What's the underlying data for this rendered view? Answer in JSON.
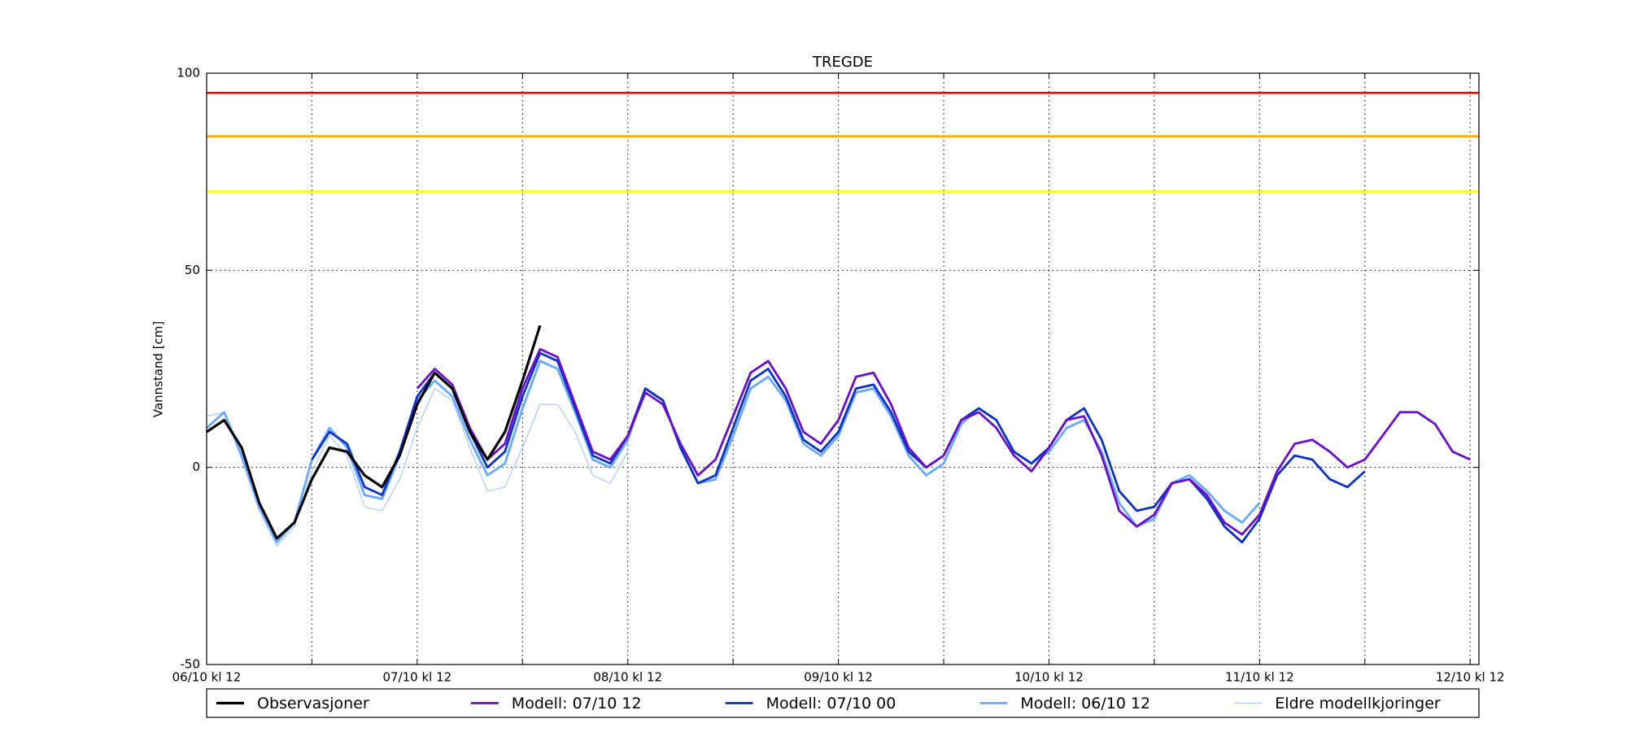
{
  "chart_data": {
    "type": "line",
    "title": "TREGDE",
    "ylabel": "Vannstand [cm]",
    "x": [
      0,
      2,
      4,
      6,
      8,
      10,
      12,
      14,
      16,
      18,
      20,
      22,
      24,
      26,
      28,
      30,
      32,
      34,
      36,
      38,
      40,
      42,
      44,
      46,
      48,
      50,
      52,
      54,
      56,
      58,
      60,
      62,
      64,
      66,
      68,
      70,
      72,
      74,
      76,
      78,
      80,
      82,
      84,
      86,
      88,
      90,
      92,
      94,
      96,
      98,
      100,
      102,
      104,
      106,
      108,
      110,
      112,
      114,
      116,
      118,
      120,
      122,
      124,
      126,
      128,
      130,
      132,
      134,
      136,
      138,
      140,
      142,
      144
    ],
    "xlim": [
      0,
      145
    ],
    "xticks": [
      {
        "value": 0,
        "label": "06/10 kl 12"
      },
      {
        "value": 24,
        "label": "07/10 kl 12"
      },
      {
        "value": 48,
        "label": "08/10 kl 12"
      },
      {
        "value": 72,
        "label": "09/10 kl 12"
      },
      {
        "value": 96,
        "label": "10/10 kl 12"
      },
      {
        "value": 120,
        "label": "11/10 kl 12"
      },
      {
        "value": 144,
        "label": "12/10 kl 12"
      }
    ],
    "xminorticks": [
      12,
      36,
      60,
      84,
      108,
      132
    ],
    "ylim": [
      -50,
      100
    ],
    "yticks": [
      -50,
      0,
      50,
      100
    ],
    "grid": true,
    "hlines": [
      {
        "value": 95,
        "color": "#ff0000"
      },
      {
        "value": 84,
        "color": "#ffa500"
      },
      {
        "value": 70,
        "color": "#ffff00"
      }
    ],
    "legend": "bottom",
    "series": [
      {
        "name": "Observasjoner",
        "color": "#000000",
        "linewidth": 3.2,
        "values": [
          9,
          12,
          5,
          -9,
          -18,
          -14,
          -3,
          5,
          4,
          -2,
          -5,
          3,
          16,
          24,
          20,
          9,
          2,
          9,
          22,
          36,
          null,
          null,
          null,
          null,
          null,
          null,
          null,
          null,
          null,
          null,
          null,
          null,
          null,
          null,
          null,
          null,
          null,
          null,
          null,
          null,
          null,
          null,
          null,
          null,
          null,
          null,
          null,
          null,
          null,
          null,
          null,
          null,
          null,
          null,
          null,
          null,
          null,
          null,
          null,
          null,
          null,
          null,
          null,
          null,
          null,
          null,
          null,
          null,
          null,
          null,
          null,
          null,
          null
        ]
      },
      {
        "name": "Modell: 07/10 12",
        "color": "#6a0dcc",
        "linewidth": 2.8,
        "values": [
          null,
          null,
          null,
          null,
          null,
          null,
          null,
          null,
          null,
          null,
          null,
          null,
          20,
          25,
          21,
          10,
          2,
          6,
          20,
          30,
          28,
          16,
          4,
          2,
          8,
          19,
          16,
          6,
          -2,
          2,
          13,
          24,
          27,
          20,
          9,
          6,
          12,
          23,
          24,
          16,
          5,
          0,
          3,
          12,
          14,
          10,
          3,
          -1,
          5,
          12,
          13,
          3,
          -11,
          -15,
          -12,
          -4,
          -3,
          -7,
          -14,
          -17,
          -12,
          -1,
          6,
          7,
          4,
          0,
          2,
          8,
          14,
          14,
          11,
          4,
          2
        ]
      },
      {
        "name": "Modell: 07/10 00",
        "color": "#0a32c8",
        "linewidth": 2.8,
        "values": [
          null,
          null,
          null,
          null,
          null,
          null,
          2,
          9,
          6,
          -5,
          -7,
          4,
          18,
          24,
          20,
          9,
          0,
          4,
          18,
          29,
          27,
          15,
          3,
          1,
          8,
          20,
          17,
          5,
          -4,
          -2,
          10,
          22,
          25,
          18,
          7,
          4,
          9,
          20,
          21,
          14,
          4,
          0,
          3,
          12,
          15,
          12,
          4,
          1,
          5,
          12,
          15,
          7,
          -6,
          -11,
          -10,
          -4,
          -3,
          -8,
          -15,
          -19,
          -13,
          -2,
          3,
          2,
          -3,
          -5,
          -1,
          null,
          null,
          null,
          null,
          null,
          null
        ]
      },
      {
        "name": "Modell: 06/10 12",
        "color": "#66aaff",
        "linewidth": 2.8,
        "values": [
          10,
          14,
          3,
          -10,
          -19,
          -14,
          2,
          10,
          5,
          -7,
          -8,
          3,
          17,
          22,
          18,
          7,
          -2,
          1,
          15,
          27,
          25,
          14,
          2,
          0,
          7,
          20,
          17,
          5,
          -4,
          -3,
          8,
          20,
          23,
          17,
          6,
          3,
          8,
          19,
          20,
          13,
          3,
          -2,
          1,
          11,
          15,
          12,
          4,
          1,
          4,
          10,
          12,
          4,
          -9,
          -15,
          -13,
          -4,
          -2,
          -6,
          -11,
          -14,
          -9,
          null,
          null,
          null,
          null,
          null,
          null,
          null,
          null,
          null,
          null,
          null,
          null
        ]
      },
      {
        "name": "Eldre modellkjoringer",
        "color": "#aaccff",
        "linewidth": 1.3,
        "values": [
          13,
          14,
          2,
          -11,
          -20,
          -15,
          -1,
          8,
          3,
          -10,
          -11,
          -3,
          10,
          20,
          17,
          5,
          -6,
          -5,
          5,
          16,
          16,
          9,
          -2,
          -4,
          4,
          null,
          null,
          null,
          null,
          null,
          null,
          null,
          null,
          null,
          null,
          null,
          null,
          null,
          null,
          null,
          null,
          null,
          null,
          null,
          null,
          null,
          null,
          null,
          null,
          null,
          null,
          null,
          null,
          null,
          null,
          null,
          null,
          null,
          null,
          null,
          null,
          null,
          null,
          null,
          null,
          null,
          null,
          null,
          null,
          null,
          null,
          null,
          null
        ]
      }
    ]
  }
}
